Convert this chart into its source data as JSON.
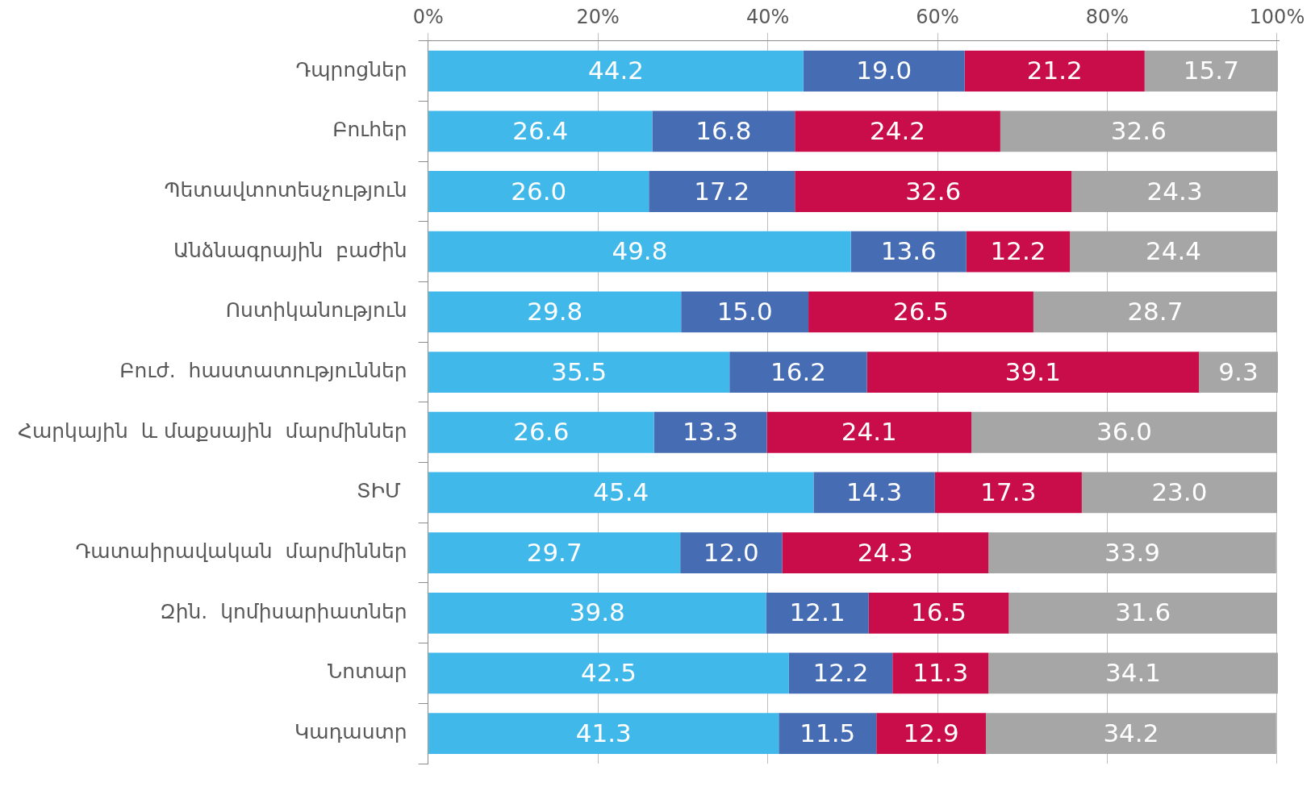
{
  "chart_data": {
    "type": "bar",
    "orientation": "horizontal",
    "stacked": true,
    "legend": false,
    "grid": "x",
    "categories": [
      "Դպրոցներ",
      "Բուհեր",
      "Պետավտոտեսչություն",
      "Անձնագրային  բաժին",
      "Ոստիկանություն",
      "Բուժ.  հաստատություններ",
      "Հարկային  և մաքսային  մարմիններ",
      "ՏԻՄ ",
      "Դատաիրավական  մարմիններ",
      "Զին.  կոմիսարիատներ",
      "Նոտար",
      "Կադաստր"
    ],
    "series": [
      {
        "color": "#41b8ea",
        "values": [
          44.2,
          26.4,
          26.0,
          49.8,
          29.8,
          35.5,
          26.6,
          45.4,
          29.7,
          39.8,
          42.5,
          41.3
        ],
        "value_labels": [
          "44.2",
          "26.4",
          "26.0",
          "49.8",
          "29.8",
          "35.5",
          "26.6",
          "45.4",
          "29.7",
          "39.8",
          "42.5",
          "41.3"
        ]
      },
      {
        "color": "#466cb3",
        "values": [
          19.0,
          16.8,
          17.2,
          13.6,
          15.0,
          16.2,
          13.3,
          14.3,
          12.0,
          12.1,
          12.2,
          11.5
        ],
        "value_labels": [
          "19.0",
          "16.8",
          "17.2",
          "13.6",
          "15.0",
          "16.2",
          "13.3",
          "14.3",
          "12.0",
          "12.1",
          "12.2",
          "11.5"
        ]
      },
      {
        "color": "#c90c4a",
        "values": [
          21.2,
          24.2,
          32.6,
          12.2,
          26.5,
          39.1,
          24.1,
          17.3,
          24.3,
          16.5,
          11.3,
          12.9
        ],
        "value_labels": [
          "21.2",
          "24.2",
          "32.6",
          "12.2",
          "26.5",
          "39.1",
          "24.1",
          "17.3",
          "24.3",
          "16.5",
          "11.3",
          "12.9"
        ]
      },
      {
        "color": "#a6a6a6",
        "values": [
          15.7,
          32.6,
          24.3,
          24.4,
          28.7,
          9.3,
          36.0,
          23.0,
          33.9,
          31.6,
          34.1,
          34.2
        ],
        "value_labels": [
          "15.7",
          "32.6",
          "24.3",
          "24.4",
          "28.7",
          "9.3",
          "36.0",
          "23.0",
          "33.9",
          "31.6",
          "34.1",
          "34.2"
        ]
      }
    ],
    "xlim": [
      0,
      100.2
    ],
    "xticks": [
      {
        "value": 0,
        "label": "0%"
      },
      {
        "value": 20,
        "label": "20%"
      },
      {
        "value": 40,
        "label": "40%"
      },
      {
        "value": 60,
        "label": "60%"
      },
      {
        "value": 80,
        "label": "80%"
      },
      {
        "value": 100,
        "label": "100%"
      }
    ]
  }
}
